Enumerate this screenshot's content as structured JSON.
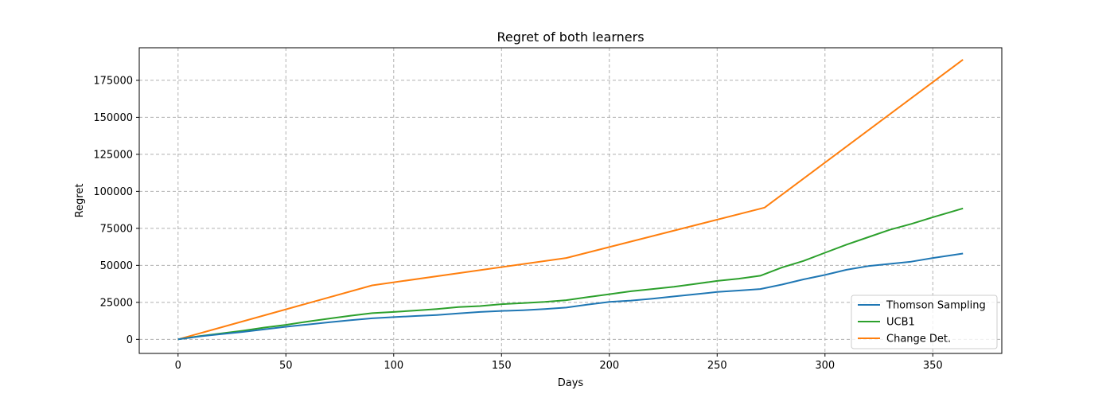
{
  "chart_data": {
    "type": "line",
    "title": "Regret of both learners",
    "xlabel": "Days",
    "ylabel": "Regret",
    "xlim": [
      -18,
      382
    ],
    "ylim": [
      -9500,
      197000
    ],
    "xticks": [
      0,
      50,
      100,
      150,
      200,
      250,
      300,
      350
    ],
    "yticks": [
      0,
      25000,
      50000,
      75000,
      100000,
      125000,
      150000,
      175000
    ],
    "grid": true,
    "legend_position": "lower right",
    "series": [
      {
        "name": "Thomson Sampling",
        "color": "#1f77b4",
        "x": [
          0,
          10,
          20,
          30,
          40,
          50,
          60,
          70,
          80,
          90,
          100,
          110,
          120,
          130,
          140,
          150,
          160,
          170,
          180,
          190,
          200,
          210,
          220,
          230,
          240,
          250,
          260,
          270,
          280,
          290,
          300,
          310,
          320,
          330,
          340,
          350,
          364
        ],
        "y": [
          0,
          2000,
          3500,
          5000,
          6800,
          8500,
          10000,
          11500,
          13000,
          14200,
          15000,
          15800,
          16500,
          17500,
          18500,
          19200,
          19700,
          20500,
          21500,
          23500,
          25300,
          26200,
          27500,
          29000,
          30500,
          32000,
          33000,
          34000,
          37000,
          40500,
          43500,
          47000,
          49500,
          51000,
          52500,
          55000,
          58000
        ]
      },
      {
        "name": "UCB1",
        "color": "#2ca02c",
        "x": [
          0,
          10,
          20,
          30,
          40,
          50,
          60,
          70,
          80,
          90,
          100,
          110,
          120,
          130,
          140,
          150,
          160,
          170,
          180,
          190,
          200,
          210,
          220,
          230,
          240,
          250,
          260,
          270,
          280,
          290,
          300,
          310,
          320,
          330,
          340,
          350,
          364
        ],
        "y": [
          0,
          2200,
          4000,
          5800,
          8000,
          9800,
          12000,
          14000,
          16000,
          17700,
          18500,
          19500,
          20500,
          21800,
          22500,
          23800,
          24500,
          25300,
          26500,
          28500,
          30500,
          32500,
          34000,
          35500,
          37500,
          39500,
          41000,
          43000,
          48500,
          53000,
          58500,
          64000,
          69000,
          74000,
          78000,
          82500,
          88500
        ]
      },
      {
        "name": "Change Det.",
        "color": "#ff7f0e",
        "x": [
          0,
          90,
          180,
          272,
          364
        ],
        "y": [
          0,
          36500,
          55000,
          89000,
          189000
        ]
      }
    ]
  }
}
